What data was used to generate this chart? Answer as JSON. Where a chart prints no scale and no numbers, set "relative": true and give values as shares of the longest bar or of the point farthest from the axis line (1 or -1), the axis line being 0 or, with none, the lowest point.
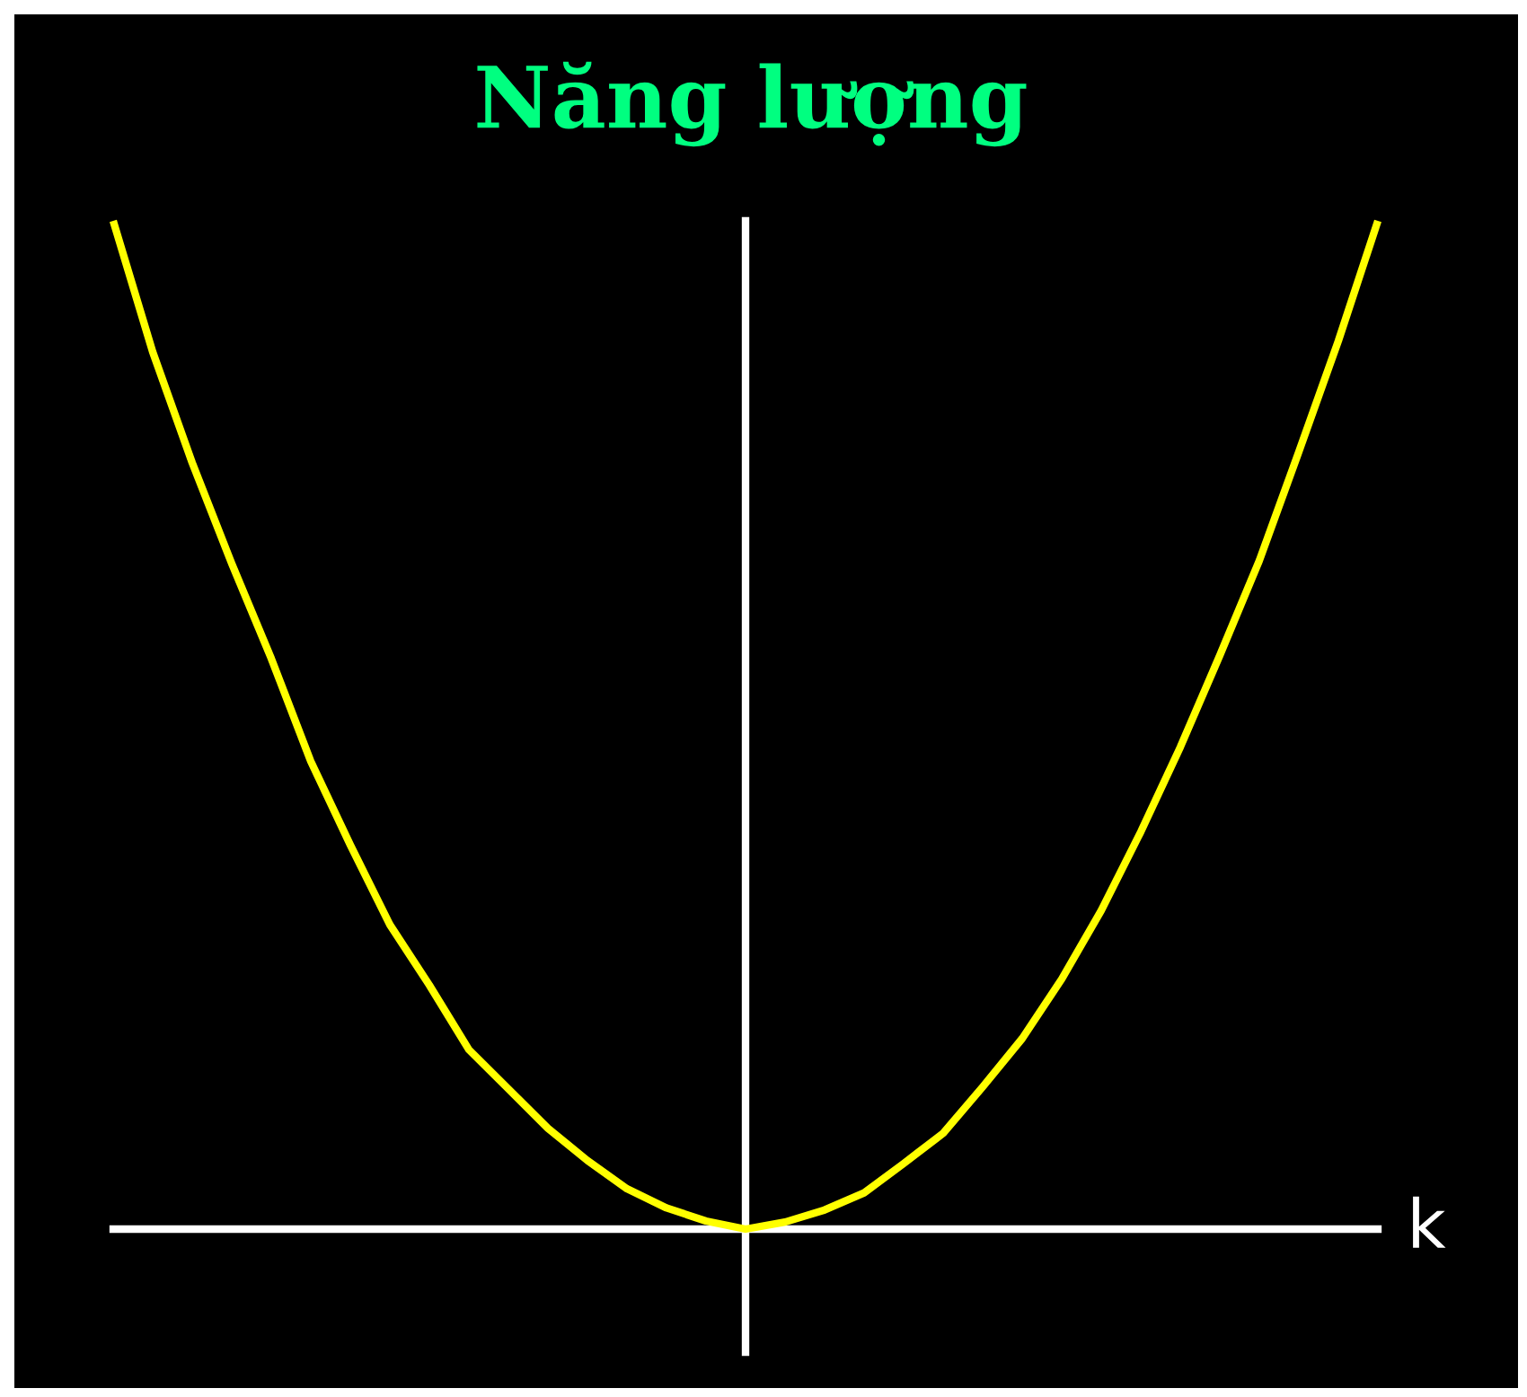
{
  "chart_data": {
    "type": "line",
    "title": "Năng lượng",
    "xlabel": "k",
    "relative": true,
    "categories": [
      null,
      null,
      null,
      null,
      null,
      null,
      null,
      null,
      null,
      null,
      null,
      null,
      null,
      null,
      null,
      null,
      null,
      null,
      null,
      null,
      null,
      null,
      null,
      null,
      null,
      null,
      null,
      null,
      null,
      null,
      null,
      null,
      null
    ],
    "series": [
      {
        "color": "#ffff00",
        "values": [
          1.0,
          0.87,
          0.76,
          0.66,
          0.566,
          0.464,
          0.381,
          0.302,
          0.242,
          0.178,
          0.139,
          0.1,
          0.068,
          0.04,
          0.021,
          0.008,
          0.0,
          0.007,
          0.019,
          0.036,
          0.065,
          0.095,
          0.141,
          0.189,
          0.248,
          0.316,
          0.394,
          0.478,
          0.569,
          0.663,
          0.771,
          0.881,
          1.0
        ]
      }
    ]
  }
}
